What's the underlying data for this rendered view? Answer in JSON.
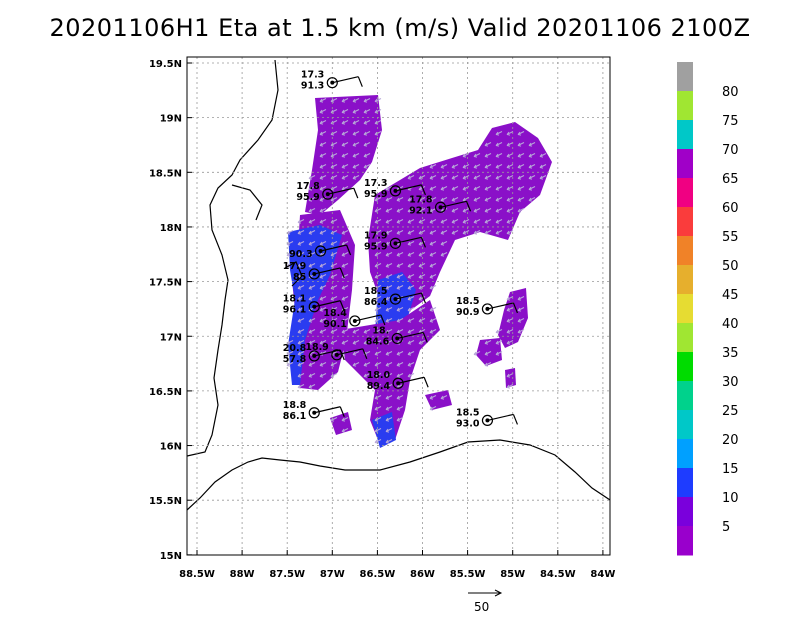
{
  "title": "20201106H1 Eta at 1.5 km (m/s) Valid 20201106 2100Z",
  "lat_ticks": [
    {
      "v": 19.5,
      "label": "19.5N"
    },
    {
      "v": 19.0,
      "label": "19N"
    },
    {
      "v": 18.5,
      "label": "18.5N"
    },
    {
      "v": 18.0,
      "label": "18N"
    },
    {
      "v": 17.5,
      "label": "17.5N"
    },
    {
      "v": 17.0,
      "label": "17N"
    },
    {
      "v": 16.5,
      "label": "16.5N"
    },
    {
      "v": 16.0,
      "label": "16N"
    },
    {
      "v": 15.5,
      "label": "15.5N"
    },
    {
      "v": 15.0,
      "label": "15N"
    }
  ],
  "lon_ticks": [
    {
      "v": -88.5,
      "label": "88.5W"
    },
    {
      "v": -88.0,
      "label": "88W"
    },
    {
      "v": -87.5,
      "label": "87.5W"
    },
    {
      "v": -87.0,
      "label": "87W"
    },
    {
      "v": -86.5,
      "label": "86.5W"
    },
    {
      "v": -86.0,
      "label": "86W"
    },
    {
      "v": -85.5,
      "label": "85.5W"
    },
    {
      "v": -85.0,
      "label": "85W"
    },
    {
      "v": -84.5,
      "label": "84.5W"
    },
    {
      "v": -84.0,
      "label": "84W"
    }
  ],
  "colorbar": [
    {
      "label": "",
      "color": "#9900cc"
    },
    {
      "label": "5",
      "color": "#7a00dc"
    },
    {
      "label": "10",
      "color": "#1e3cff"
    },
    {
      "label": "15",
      "color": "#00a0ff"
    },
    {
      "label": "20",
      "color": "#00c8c8"
    },
    {
      "label": "25",
      "color": "#00d28c"
    },
    {
      "label": "30",
      "color": "#00dc00"
    },
    {
      "label": "35",
      "color": "#a0e632"
    },
    {
      "label": "40",
      "color": "#e6dc32"
    },
    {
      "label": "45",
      "color": "#e6af2d"
    },
    {
      "label": "50",
      "color": "#f08228"
    },
    {
      "label": "55",
      "color": "#fa3c3c"
    },
    {
      "label": "60",
      "color": "#f00082"
    },
    {
      "label": "65",
      "color": "#a000c8"
    },
    {
      "label": "70",
      "color": "#00c8c8"
    },
    {
      "label": "75",
      "color": "#a0e632"
    },
    {
      "label": "80",
      "color": "#a0a0a0"
    }
  ],
  "stations": [
    {
      "lon": -87.0,
      "lat": 19.32,
      "top": "17.3",
      "bottom": "91.3"
    },
    {
      "lon": -87.05,
      "lat": 18.3,
      "top": "17.8",
      "bottom": "95.9"
    },
    {
      "lon": -86.3,
      "lat": 18.33,
      "top": "17.3",
      "bottom": "95.9"
    },
    {
      "lon": -85.8,
      "lat": 18.18,
      "top": "17.8",
      "bottom": "92.1"
    },
    {
      "lon": -86.3,
      "lat": 17.85,
      "top": "17.9",
      "bottom": "95.9"
    },
    {
      "lon": -87.13,
      "lat": 17.78,
      "top": "",
      "bottom": "90.3"
    },
    {
      "lon": -87.2,
      "lat": 17.57,
      "top": "17.9",
      "bottom": "85"
    },
    {
      "lon": -87.2,
      "lat": 17.27,
      "top": "18.1",
      "bottom": "96.1"
    },
    {
      "lon": -86.3,
      "lat": 17.34,
      "top": "18.5",
      "bottom": "86.4"
    },
    {
      "lon": -86.75,
      "lat": 17.14,
      "top": "18.4",
      "bottom": "90.1"
    },
    {
      "lon": -86.28,
      "lat": 16.98,
      "top": "18.",
      "bottom": "84.6"
    },
    {
      "lon": -87.2,
      "lat": 16.82,
      "top": "20.8",
      "bottom": "57.8"
    },
    {
      "lon": -86.95,
      "lat": 16.83,
      "top": "18.9",
      "bottom": ""
    },
    {
      "lon": -85.28,
      "lat": 17.25,
      "top": "18.5",
      "bottom": "90.9"
    },
    {
      "lon": -86.27,
      "lat": 16.57,
      "top": "18.0",
      "bottom": "89.4"
    },
    {
      "lon": -87.2,
      "lat": 16.3,
      "top": "18.8",
      "bottom": "86.1"
    },
    {
      "lon": -85.28,
      "lat": 16.23,
      "top": "18.5",
      "bottom": "93.0"
    }
  ],
  "reference_vector": {
    "value": "50"
  }
}
